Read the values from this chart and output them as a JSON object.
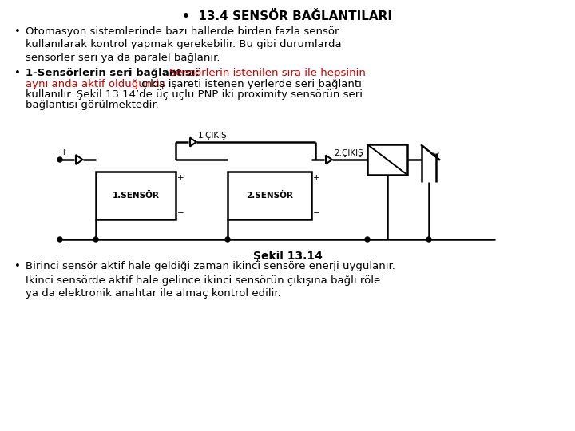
{
  "title": "13.4 SENSÖR BAĞLANTILARI",
  "bg_color": "#ffffff",
  "text_color": "#000000",
  "red_color": "#cc0000",
  "font_size": 9.5,
  "title_font_size": 11,
  "diagram": {
    "sensor1_label": "1.SENSÖR",
    "sensor2_label": "2.SENSÖR",
    "output1_label": "1.ÇIKIŞ",
    "output2_label": "2.ÇIKIŞ",
    "caption": "Şekil 13.14"
  }
}
